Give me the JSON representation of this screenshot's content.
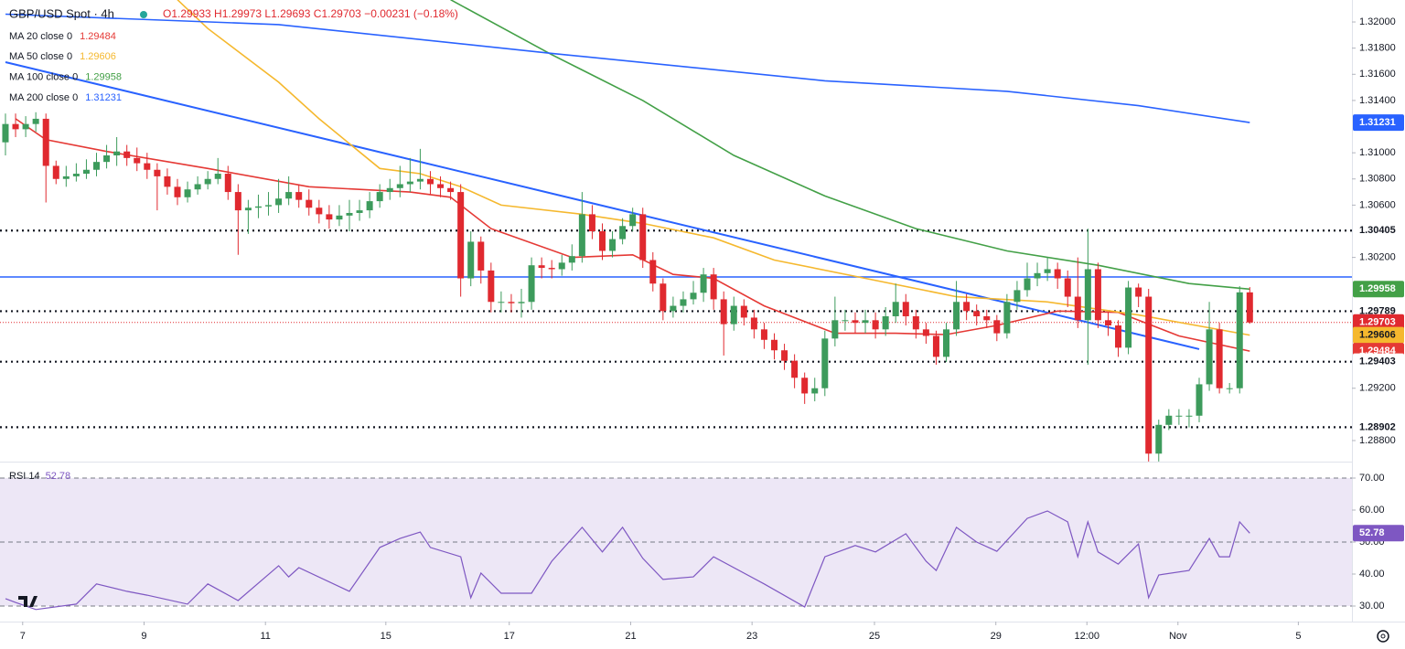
{
  "chart_data": {
    "type": "candlestick",
    "title": "GBP/USD Spot · 4h",
    "ohlc_text": "O1.29933 H1.29973 L1.29693 C1.29703 −0.00231 (−0.18%)",
    "ohlc_color": "#e0292f",
    "xlim": [
      -0.54,
      133.1
    ],
    "ylim": [
      1.28639,
      1.32168
    ],
    "grid": false,
    "yticks": [
      {
        "value": 1.32,
        "label": "1.32000"
      },
      {
        "value": 1.318,
        "label": "1.31800"
      },
      {
        "value": 1.316,
        "label": "1.31600"
      },
      {
        "value": 1.314,
        "label": "1.31400"
      },
      {
        "value": 1.31,
        "label": "1.31000"
      },
      {
        "value": 1.308,
        "label": "1.30800"
      },
      {
        "value": 1.306,
        "label": "1.30600"
      },
      {
        "value": 1.302,
        "label": "1.30200"
      },
      {
        "value": 1.292,
        "label": "1.29200"
      },
      {
        "value": 1.288,
        "label": "1.28800"
      }
    ],
    "xticks": [
      {
        "value": 1.7,
        "label": "7"
      },
      {
        "value": 13.7,
        "label": "9"
      },
      {
        "value": 25.7,
        "label": "11"
      },
      {
        "value": 37.6,
        "label": "15"
      },
      {
        "value": 49.8,
        "label": "17"
      },
      {
        "value": 61.8,
        "label": "21"
      },
      {
        "value": 73.8,
        "label": "23"
      },
      {
        "value": 85.9,
        "label": "25"
      },
      {
        "value": 97.9,
        "label": "29"
      },
      {
        "value": 106.9,
        "label": "12:00"
      },
      {
        "value": 115.9,
        "label": "Nov"
      },
      {
        "value": 127.8,
        "label": "5"
      }
    ],
    "candles": {
      "up_color": "#3d9b5c",
      "down_color": "#e0292f",
      "open": [
        1.3108,
        1.3122,
        1.3118,
        1.3122,
        1.3126,
        1.309,
        1.308,
        1.3082,
        1.3084,
        1.3087,
        1.3093,
        1.3098,
        1.3101,
        1.3096,
        1.3092,
        1.3087,
        1.3082,
        1.3074,
        1.3066,
        1.3072,
        1.3076,
        1.308,
        1.3084,
        1.307,
        1.3056,
        1.3058,
        1.3059,
        1.306,
        1.3065,
        1.307,
        1.3064,
        1.3058,
        1.3053,
        1.3049,
        1.3052,
        1.3054,
        1.3056,
        1.3063,
        1.307,
        1.3073,
        1.3076,
        1.3078,
        1.308,
        1.3076,
        1.3073,
        1.307,
        1.3004,
        1.3032,
        1.301,
        1.2986,
        1.2986,
        1.2985,
        1.2986,
        1.3014,
        1.3012,
        1.3011,
        1.3016,
        1.3021,
        1.3053,
        1.304,
        1.3025,
        1.3034,
        1.3044,
        1.3053,
        1.3018,
        1.3,
        1.2979,
        1.2983,
        1.2988,
        1.2993,
        1.3007,
        1.2988,
        1.2969,
        1.2983,
        1.2974,
        1.2965,
        1.2957,
        1.2949,
        1.2941,
        1.2928,
        1.2916,
        1.292,
        1.2958,
        1.2972,
        1.2972,
        1.297,
        1.2972,
        1.2965,
        1.2975,
        1.2986,
        1.2975,
        1.2965,
        1.296,
        1.2944,
        1.2965,
        1.2986,
        1.2979,
        1.2975,
        1.2972,
        1.2962,
        1.2986,
        1.2995,
        1.3004,
        1.3008,
        1.3011,
        1.3004,
        1.299,
        1.2972,
        1.3011,
        1.2972,
        1.2968,
        1.2951,
        1.2997,
        1.299,
        1.287,
        1.2892,
        1.2899,
        1.2899,
        1.2899,
        1.2923,
        1.2965,
        1.292,
        1.292,
        1.29933
      ],
      "high": [
        1.313,
        1.313,
        1.3128,
        1.3131,
        1.313,
        1.3094,
        1.309,
        1.3092,
        1.3095,
        1.31,
        1.3106,
        1.3112,
        1.3106,
        1.3104,
        1.31,
        1.3092,
        1.3088,
        1.308,
        1.3078,
        1.3082,
        1.3086,
        1.3096,
        1.309,
        1.3076,
        1.3064,
        1.3068,
        1.307,
        1.308,
        1.3082,
        1.3076,
        1.3072,
        1.3064,
        1.306,
        1.306,
        1.3064,
        1.3064,
        1.307,
        1.3076,
        1.308,
        1.309,
        1.3096,
        1.3103,
        1.3086,
        1.3082,
        1.3078,
        1.3076,
        1.304,
        1.3036,
        1.3016,
        1.2994,
        1.2992,
        1.2996,
        1.302,
        1.302,
        1.3018,
        1.3022,
        1.303,
        1.307,
        1.306,
        1.3046,
        1.304,
        1.305,
        1.3058,
        1.3058,
        1.3024,
        1.3004,
        1.299,
        1.2994,
        1.3002,
        1.3012,
        1.3012,
        1.2994,
        1.299,
        1.2988,
        1.298,
        1.297,
        1.2962,
        1.2954,
        1.2946,
        1.2932,
        1.2928,
        1.2964,
        1.299,
        1.298,
        1.2978,
        1.298,
        1.2978,
        1.2982,
        1.3,
        1.2992,
        1.298,
        1.297,
        1.2964,
        1.297,
        1.3002,
        1.2992,
        1.2984,
        1.298,
        1.2976,
        1.2992,
        1.3002,
        1.3016,
        1.3016,
        1.302,
        1.3016,
        1.301,
        1.302,
        1.3042,
        1.3016,
        1.2978,
        1.2972,
        1.3002,
        1.3,
        1.2996,
        1.2896,
        1.2904,
        1.2904,
        1.2904,
        1.2928,
        1.2986,
        1.297,
        1.2924,
        1.2998,
        1.29973
      ],
      "low": [
        1.3098,
        1.3112,
        1.3112,
        1.3116,
        1.3062,
        1.3076,
        1.3074,
        1.3078,
        1.308,
        1.3082,
        1.3088,
        1.309,
        1.309,
        1.3086,
        1.308,
        1.3056,
        1.3068,
        1.306,
        1.3062,
        1.3068,
        1.3072,
        1.3076,
        1.3064,
        1.3022,
        1.3038,
        1.305,
        1.3052,
        1.3054,
        1.306,
        1.3058,
        1.3052,
        1.3046,
        1.3042,
        1.3044,
        1.304,
        1.3048,
        1.305,
        1.3058,
        1.3064,
        1.3066,
        1.307,
        1.3072,
        1.3068,
        1.3066,
        1.3064,
        1.299,
        1.2998,
        1.3,
        1.2978,
        1.2978,
        1.2978,
        1.2974,
        1.298,
        1.3004,
        1.3004,
        1.3006,
        1.301,
        1.3016,
        1.3034,
        1.3018,
        1.302,
        1.303,
        1.304,
        1.3012,
        1.2994,
        1.2972,
        1.2974,
        1.2978,
        1.2984,
        1.2986,
        1.298,
        1.2945,
        1.2964,
        1.2968,
        1.2958,
        1.295,
        1.2942,
        1.2934,
        1.292,
        1.2908,
        1.291,
        1.2914,
        1.2952,
        1.2964,
        1.2962,
        1.2962,
        1.2958,
        1.296,
        1.297,
        1.2968,
        1.2958,
        1.2954,
        1.2938,
        1.294,
        1.296,
        1.2972,
        1.2968,
        1.2966,
        1.2956,
        1.2958,
        1.298,
        1.299,
        1.2998,
        1.3002,
        1.2996,
        1.2982,
        1.2966,
        1.2938,
        1.2966,
        1.296,
        1.2944,
        1.2946,
        1.2982,
        1.2864,
        1.2864,
        1.2888,
        1.2892,
        1.289,
        1.2894,
        1.2918,
        1.2916,
        1.2916,
        1.2916,
        1.29693
      ],
      "close": [
        1.3122,
        1.3118,
        1.3122,
        1.3126,
        1.309,
        1.308,
        1.3082,
        1.3084,
        1.3087,
        1.3093,
        1.3098,
        1.3101,
        1.3096,
        1.3092,
        1.3087,
        1.3082,
        1.3074,
        1.3066,
        1.3072,
        1.3076,
        1.308,
        1.3084,
        1.307,
        1.3056,
        1.3058,
        1.3059,
        1.306,
        1.3065,
        1.307,
        1.3064,
        1.3058,
        1.3053,
        1.3049,
        1.3052,
        1.3054,
        1.3056,
        1.3063,
        1.307,
        1.3073,
        1.3076,
        1.3078,
        1.308,
        1.3076,
        1.3073,
        1.307,
        1.3004,
        1.3032,
        1.301,
        1.2986,
        1.2986,
        1.2985,
        1.2986,
        1.3014,
        1.3012,
        1.3011,
        1.3016,
        1.3021,
        1.3053,
        1.304,
        1.3025,
        1.3034,
        1.3044,
        1.3053,
        1.3018,
        1.3,
        1.2979,
        1.2983,
        1.2988,
        1.2993,
        1.3007,
        1.2988,
        1.2969,
        1.2983,
        1.2974,
        1.2965,
        1.2957,
        1.2949,
        1.2941,
        1.2928,
        1.2916,
        1.292,
        1.2958,
        1.2972,
        1.2972,
        1.297,
        1.2972,
        1.2965,
        1.2975,
        1.2986,
        1.2975,
        1.2965,
        1.296,
        1.2944,
        1.2965,
        1.2986,
        1.2979,
        1.2975,
        1.2972,
        1.2962,
        1.2986,
        1.2995,
        1.3004,
        1.3008,
        1.3011,
        1.3004,
        1.299,
        1.2972,
        1.3011,
        1.2972,
        1.2968,
        1.2951,
        1.2997,
        1.299,
        1.287,
        1.2892,
        1.2899,
        1.2899,
        1.2899,
        1.2923,
        1.2965,
        1.292,
        1.292,
        1.29933,
        1.29703
      ]
    },
    "series": [
      {
        "name": "MA 20 close 0",
        "last_label": "1.29484",
        "color": "#e53935",
        "x": [
          1,
          4,
          10,
          20,
          30,
          40,
          44,
          48,
          56,
          62,
          66,
          70,
          75,
          82,
          88,
          93,
          98,
          104,
          110,
          116,
          123
        ],
        "values": [
          1.3126,
          1.311,
          1.3101,
          1.3088,
          1.3074,
          1.307,
          1.3066,
          1.3042,
          1.302,
          1.3022,
          1.3007,
          1.3004,
          1.2983,
          1.2962,
          1.2962,
          1.2961,
          1.2968,
          1.2979,
          1.2978,
          1.296,
          1.29484
        ]
      },
      {
        "name": "MA 50 close 0",
        "last_label": "1.29606",
        "color": "#f5b82e",
        "x": [
          17,
          20,
          27,
          31,
          37,
          41,
          45,
          49,
          57,
          63,
          70,
          76,
          85,
          94,
          103,
          112,
          123
        ],
        "values": [
          1.3217,
          1.3195,
          1.3154,
          1.3126,
          1.3088,
          1.3084,
          1.3074,
          1.306,
          1.3053,
          1.3046,
          1.3035,
          1.3018,
          1.3004,
          1.299,
          1.2986,
          1.2976,
          1.29606
        ]
      },
      {
        "name": "MA 100 close 0",
        "last_label": "1.29958",
        "color": "#43a047",
        "x": [
          44,
          54,
          63,
          72,
          81,
          90,
          99,
          108,
          117,
          123
        ],
        "values": [
          1.3217,
          1.3175,
          1.314,
          1.3098,
          1.3067,
          1.3042,
          1.3025,
          1.3014,
          1.3,
          1.29958
        ]
      },
      {
        "name": "MA 200 close 0",
        "last_label": "1.31231",
        "color": "#2962ff",
        "x": [
          0,
          27,
          54,
          81,
          99,
          112,
          123
        ],
        "values": [
          1.3206,
          1.3198,
          1.3176,
          1.3155,
          1.3147,
          1.3136,
          1.31231
        ]
      }
    ],
    "trendline": {
      "color": "#2962ff",
      "x": [
        0,
        118
      ],
      "values": [
        1.31693,
        1.29499
      ]
    },
    "levels": [
      {
        "value": 1.30405,
        "style": "dotted",
        "color": "#131722"
      },
      {
        "value": 1.29789,
        "style": "dotted",
        "color": "#131722"
      },
      {
        "value": 1.29403,
        "style": "dotted",
        "color": "#131722"
      },
      {
        "value": 1.28902,
        "style": "dotted",
        "color": "#131722"
      },
      {
        "value": 1.30051,
        "style": "solid",
        "color": "#2962ff"
      },
      {
        "value": 1.29703,
        "style": "dotted",
        "color": "#e0292f"
      }
    ],
    "price_labels": [
      {
        "value": 1.31231,
        "label": "1.31231",
        "bg": "#2962ff",
        "fg": "#ffffff"
      },
      {
        "value": 1.30405,
        "label": "1.30405",
        "bg": "#ffffff",
        "fg": "#131722"
      },
      {
        "value": 1.29958,
        "label": "1.29958",
        "bg": "#43a047",
        "fg": "#ffffff"
      },
      {
        "value": 1.29789,
        "label": "1.29789",
        "bg": "#ffffff",
        "fg": "#131722"
      },
      {
        "value": 1.29703,
        "label": "1.29703",
        "bg": "#e0292f",
        "fg": "#ffffff"
      },
      {
        "value": 1.29606,
        "label": "1.29606",
        "bg": "#f5b82e",
        "fg": "#131722"
      },
      {
        "value": 1.29484,
        "label": "1.29484",
        "bg": "#e53935",
        "fg": "#ffffff"
      },
      {
        "value": 1.29403,
        "label": "1.29403",
        "bg": "#ffffff",
        "fg": "#131722"
      },
      {
        "value": 1.28902,
        "label": "1.28902",
        "bg": "#ffffff",
        "fg": "#131722"
      }
    ],
    "rsi": {
      "name": "RSI 14",
      "last_label": "52.78",
      "color": "#7e57c2",
      "band": [
        30,
        70
      ],
      "band_color": "#ede7f6",
      "lines": [
        70,
        50,
        30
      ],
      "ylim": [
        25.14,
        75.14
      ],
      "yticks": [
        {
          "value": 70,
          "label": "70.00"
        },
        {
          "value": 60,
          "label": "60.00"
        },
        {
          "value": 50,
          "label": "50.00"
        },
        {
          "value": 40,
          "label": "40.00"
        },
        {
          "value": 30,
          "label": "30.00"
        }
      ],
      "x": [
        0,
        1,
        3,
        7,
        9,
        12,
        14,
        18,
        20,
        23,
        27,
        28,
        29,
        34,
        37,
        39,
        41,
        42,
        45,
        46,
        47,
        49,
        52,
        54,
        57,
        59,
        61,
        63,
        65,
        68,
        70,
        75,
        79,
        81,
        84,
        86,
        89,
        91,
        92,
        94,
        96,
        98,
        101,
        103,
        105,
        106,
        107,
        108,
        110,
        112,
        113,
        114,
        117,
        119,
        120,
        121,
        122,
        123
      ],
      "values": [
        32.3,
        31.1,
        28.9,
        30.6,
        36.9,
        34.6,
        33.4,
        30.6,
        36.9,
        31.7,
        42.6,
        39.1,
        42.0,
        34.6,
        48.3,
        51.1,
        53.1,
        48.3,
        45.4,
        32.6,
        40.3,
        34.0,
        34.0,
        44.0,
        54.6,
        46.9,
        54.6,
        44.9,
        38.3,
        39.1,
        45.4,
        36.9,
        29.7,
        45.4,
        48.9,
        46.9,
        52.6,
        44.0,
        41.1,
        54.6,
        50.0,
        47.1,
        57.4,
        59.7,
        56.3,
        45.4,
        56.3,
        46.9,
        43.1,
        49.4,
        32.6,
        39.7,
        41.1,
        51.1,
        45.4,
        45.4,
        56.3,
        52.78
      ],
      "label_value": 52.78,
      "label_bg": "#7e57c2",
      "label_fg": "#ffffff"
    }
  }
}
